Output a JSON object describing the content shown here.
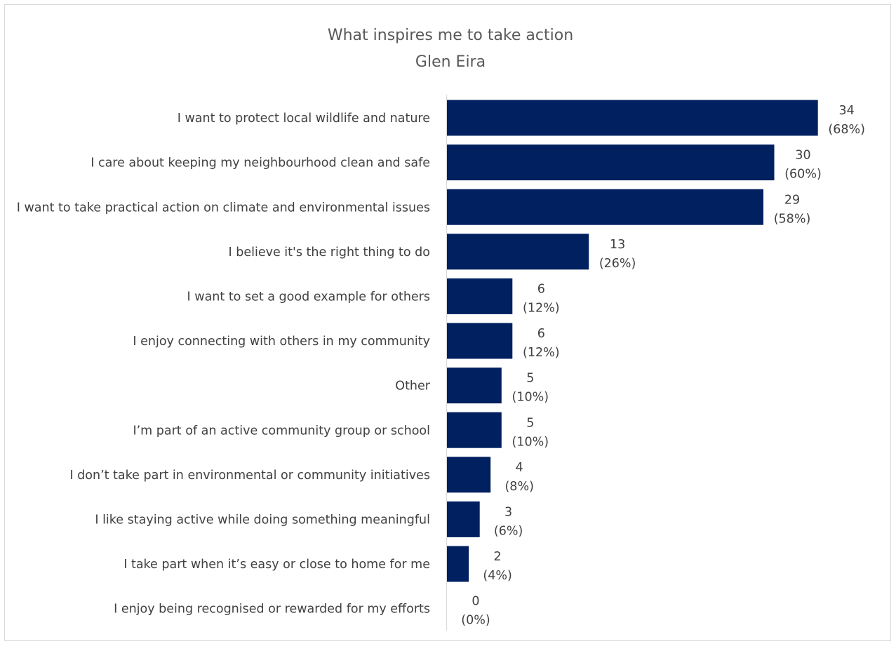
{
  "chart_data": {
    "type": "bar",
    "orientation": "horizontal",
    "title": "What inspires me to take action",
    "subtitle": "Glen Eira",
    "categories": [
      "I want to protect local wildlife and nature",
      "I care about keeping my neighbourhood clean and safe",
      "I want to take practical action on climate and environmental issues",
      "I believe it's the right thing to do",
      "I want to set a good example for others",
      "I enjoy connecting with others in my community",
      "Other",
      "I’m part of an active community group or school",
      "I don’t take part in environmental or community initiatives",
      "I like staying active while doing something meaningful",
      "I take part when it’s easy or close to home for me",
      "I enjoy being recognised or rewarded for my efforts"
    ],
    "values": [
      34,
      30,
      29,
      13,
      6,
      6,
      5,
      5,
      4,
      3,
      2,
      0
    ],
    "percent_labels": [
      "(68%)",
      "(60%)",
      "(58%)",
      "(26%)",
      "(12%)",
      "(12%)",
      "(10%)",
      "(10%)",
      "(8%)",
      "(6%)",
      "(4%)",
      "(0%)"
    ],
    "xlim": [
      0,
      36
    ],
    "grid": false,
    "legend": "none",
    "colors": {
      "bar": "#002060",
      "axis": "#d9d9d9",
      "text": "#404040",
      "title": "#595959"
    }
  }
}
